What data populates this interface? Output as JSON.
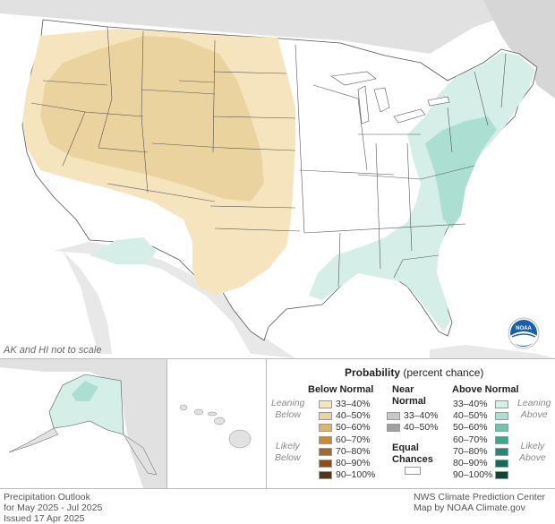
{
  "map": {
    "scale_note": "AK and HI not to scale",
    "logo_text": "NOAA"
  },
  "legend": {
    "title_bold": "Probability",
    "title_rest": " (percent chance)",
    "below": {
      "header": "Below Normal",
      "leaning": [
        "Leaning",
        "Below"
      ],
      "likely": [
        "Likely",
        "Below"
      ],
      "items": [
        {
          "label": "33–40%",
          "color": "#f5e4be"
        },
        {
          "label": "40–50%",
          "color": "#ebd39f"
        },
        {
          "label": "50–60%",
          "color": "#ddb46b"
        },
        {
          "label": "60–70%",
          "color": "#c98a34"
        },
        {
          "label": "70–80%",
          "color": "#a8691f"
        },
        {
          "label": "80–90%",
          "color": "#8a5017"
        },
        {
          "label": "90–100%",
          "color": "#5c3410"
        }
      ]
    },
    "near": {
      "header": [
        "Near",
        "Normal"
      ],
      "items": [
        {
          "label": "33–40%",
          "color": "#c8c8c8"
        },
        {
          "label": "40–50%",
          "color": "#a0a0a0"
        }
      ]
    },
    "equal": {
      "header": [
        "Equal",
        "Chances"
      ],
      "color": "#ffffff"
    },
    "above": {
      "header": "Above Normal",
      "leaning": [
        "Leaning",
        "Above"
      ],
      "likely": [
        "Likely",
        "Above"
      ],
      "items": [
        {
          "label": "33–40%",
          "color": "#d5efe8"
        },
        {
          "label": "40–50%",
          "color": "#aadfd2"
        },
        {
          "label": "50–60%",
          "color": "#6fc5b0"
        },
        {
          "label": "60–70%",
          "color": "#3fa68e"
        },
        {
          "label": "70–80%",
          "color": "#228a73"
        },
        {
          "label": "80–90%",
          "color": "#126b58"
        },
        {
          "label": "90–100%",
          "color": "#07473a"
        }
      ]
    }
  },
  "footer": {
    "left": [
      "Precipitation Outlook",
      "for May 2025 - Jul 2025",
      "Issued 17 Apr 2025"
    ],
    "right": [
      "NWS Climate Prediction Center",
      "Map by NOAA Climate.gov"
    ]
  },
  "colors": {
    "land_bg": "#e1e1e1",
    "ocean": "#ffffff",
    "conus": "#ffffff",
    "below_lean": "#f5e4be",
    "below_40": "#ebd39f",
    "above_lean": "#d5efe8",
    "above_40": "#aadfd2",
    "noaa_blue": "#1b5fa8"
  }
}
